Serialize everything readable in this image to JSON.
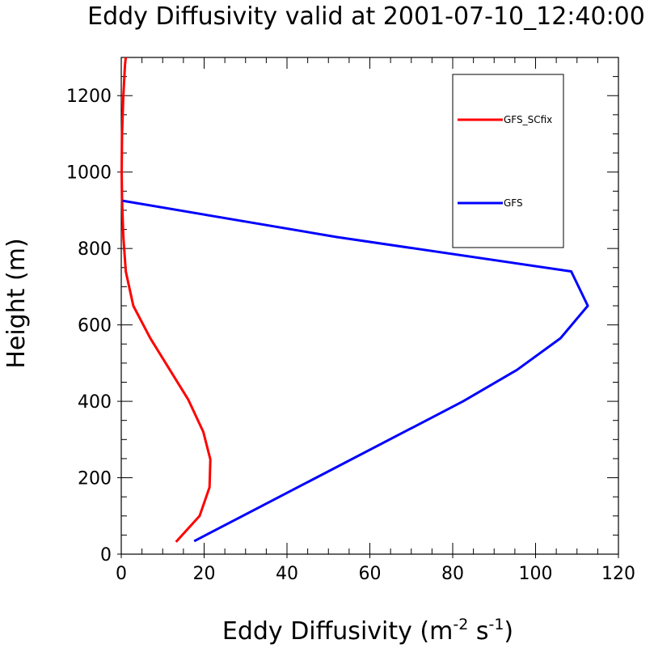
{
  "chart_data": {
    "type": "line",
    "title": "Eddy Diffusivity valid at 2001-07-10_12:40:00",
    "xlabel": {
      "base": "Eddy Diffusivity (m",
      "sup1": "-2",
      "mid": " s",
      "sup2": "-1",
      "end": ")"
    },
    "ylabel": "Height (m)",
    "xlim": [
      0,
      120
    ],
    "ylim": [
      0,
      1300
    ],
    "xticks": [
      0,
      20,
      40,
      60,
      80,
      100,
      120
    ],
    "yticks": [
      0,
      200,
      400,
      600,
      800,
      1000,
      1200
    ],
    "xtick_labels": [
      "0",
      "20",
      "40",
      "60",
      "80",
      "100",
      "120"
    ],
    "ytick_labels": [
      "0",
      "200",
      "400",
      "600",
      "800",
      "1000",
      "1200"
    ],
    "grid": false,
    "legend_position": "top-right",
    "series": [
      {
        "name": "GFS_SCfix",
        "color": "#ff0000",
        "x": [
          13.2,
          18.9,
          21.3,
          21.5,
          19.8,
          16.2,
          7,
          2.9,
          1.1,
          0.5,
          0.2,
          0.1,
          0.2,
          0.5,
          0.9,
          1.1
        ],
        "y": [
          32,
          100,
          175,
          248,
          320,
          404,
          565,
          650,
          740,
          830,
          925,
          1000,
          1100,
          1200,
          1280,
          1300
        ]
      },
      {
        "name": "GFS",
        "color": "#0000ff",
        "x": [
          17.6,
          82.5,
          95.5,
          106,
          112.6,
          108.6,
          52,
          0.3
        ],
        "y": [
          34,
          400,
          482,
          565,
          650,
          740,
          830,
          925
        ]
      }
    ]
  }
}
